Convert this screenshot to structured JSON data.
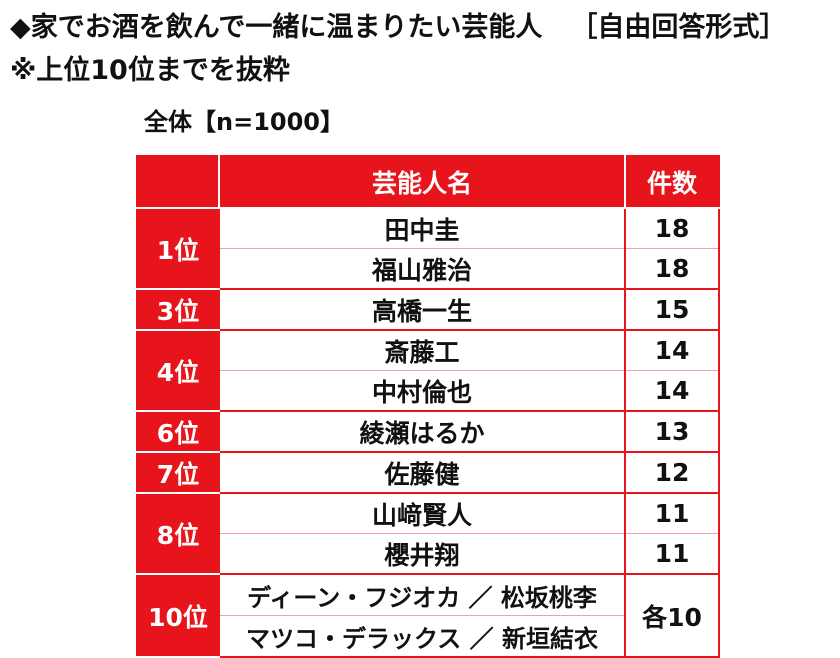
{
  "title": "◆家でお酒を飲んで一緒に温まりたい芸能人",
  "format_note": "［自由回答形式］",
  "subnote": "※上位10位までを抜粋",
  "sample": "全体【n=1000】",
  "table": {
    "headers": {
      "rank": "",
      "name": "芸能人名",
      "count": "件数"
    },
    "groups": [
      {
        "rank": "1位",
        "rows": [
          {
            "name": "田中圭",
            "count": "18"
          },
          {
            "name": "福山雅治",
            "count": "18"
          }
        ]
      },
      {
        "rank": "3位",
        "rows": [
          {
            "name": "高橋一生",
            "count": "15"
          }
        ]
      },
      {
        "rank": "4位",
        "rows": [
          {
            "name": "斎藤工",
            "count": "14"
          },
          {
            "name": "中村倫也",
            "count": "14"
          }
        ]
      },
      {
        "rank": "6位",
        "rows": [
          {
            "name": "綾瀬はるか",
            "count": "13"
          }
        ]
      },
      {
        "rank": "7位",
        "rows": [
          {
            "name": "佐藤健",
            "count": "12"
          }
        ]
      },
      {
        "rank": "8位",
        "rows": [
          {
            "name": "山﨑賢人",
            "count": "11"
          },
          {
            "name": "櫻井翔",
            "count": "11"
          }
        ]
      },
      {
        "rank": "10位",
        "rows": [
          {
            "name": "ディーン・フジオカ ／ 松坂桃李",
            "count": "各10"
          },
          {
            "name": "マツコ・デラックス ／ 新垣結衣",
            "count": ""
          }
        ],
        "merged_count": "各10"
      }
    ]
  }
}
